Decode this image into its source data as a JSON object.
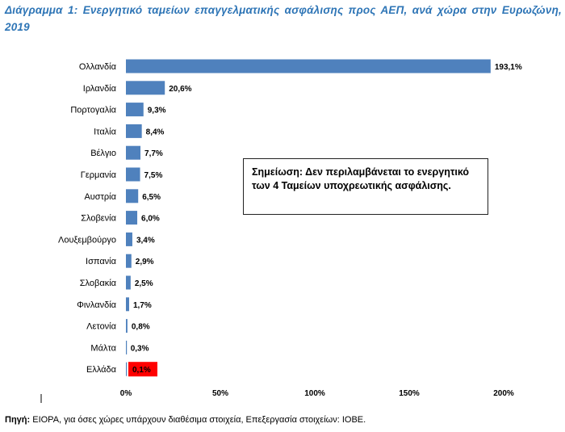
{
  "header": {
    "title": "Διάγραμμα 1: Ενεργητικό ταμείων επαγγελματικής ασφάλισης προς ΑΕΠ, ανά χώρα στην Ευρωζώνη, 2019"
  },
  "note": {
    "text": "Σημείωση: Δεν περιλαμβάνεται το ενεργητικό των 4 Ταμείων υποχρεωτικής ασφάλισης."
  },
  "footer": {
    "source_label": "Πηγή:",
    "source_text": " EIOPA, για όσες χώρες υπάρχουν διαθέσιμα στοιχεία, Επεξεργασία στοιχείων: ΙΟΒΕ."
  },
  "colors": {
    "bar": "#4f81bd",
    "highlight": "#ff0000",
    "title": "#2e75b6"
  },
  "chart_data": {
    "type": "bar",
    "orientation": "horizontal",
    "categories": [
      "Ολλανδία",
      "Ιρλανδία",
      "Πορτογαλία",
      "Ιταλία",
      "Βέλγιο",
      "Γερμανία",
      "Αυστρία",
      "Σλοβενία",
      "Λουξεμβούργο",
      "Ισπανία",
      "Σλοβακία",
      "Φινλανδία",
      "Λετονία",
      "Μάλτα",
      "Ελλάδα"
    ],
    "values": [
      193.1,
      20.6,
      9.3,
      8.4,
      7.7,
      7.5,
      6.5,
      6.0,
      3.4,
      2.9,
      2.5,
      1.7,
      0.8,
      0.3,
      0.1
    ],
    "value_labels": [
      "193,1%",
      "20,6%",
      "9,3%",
      "8,4%",
      "7,7%",
      "7,5%",
      "6,5%",
      "6,0%",
      "3,4%",
      "2,9%",
      "2,5%",
      "1,7%",
      "0,8%",
      "0,3%",
      "0,1%"
    ],
    "highlighted_category": "Ελλάδα",
    "xlim": [
      0,
      200
    ],
    "xticks": [
      0,
      50,
      100,
      150,
      200
    ],
    "xtick_labels": [
      "0%",
      "50%",
      "100%",
      "150%",
      "200%"
    ],
    "grid": false,
    "legend": "none"
  }
}
